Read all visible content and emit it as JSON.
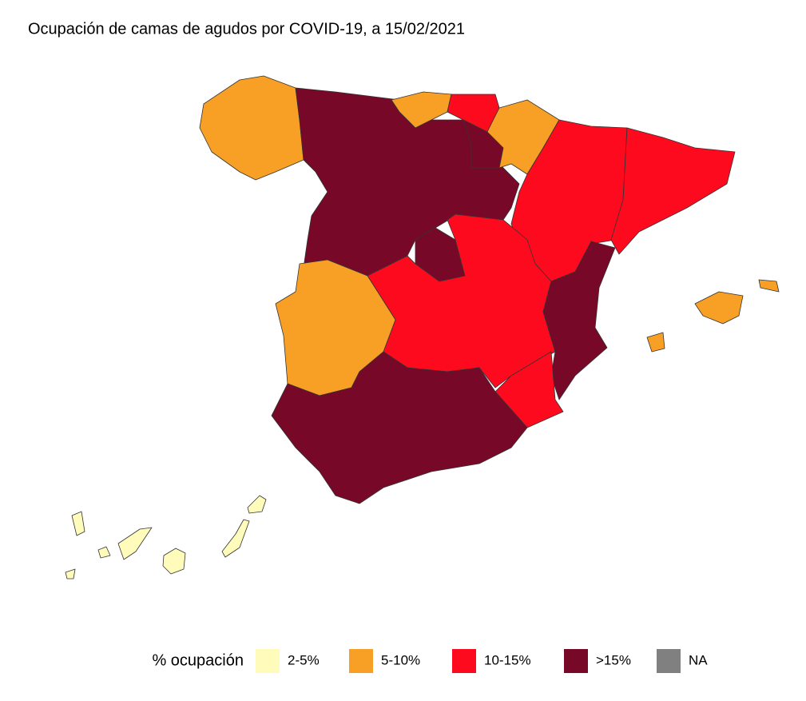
{
  "title": "Ocupación de camas de agudos por COVID-19, a 15/02/2021",
  "legend": {
    "title": "% ocupación",
    "items": [
      {
        "label": "2-5%",
        "color": "#fffcbb"
      },
      {
        "label": "5-10%",
        "color": "#f8a025"
      },
      {
        "label": "10-15%",
        "color": "#fe0a1e"
      },
      {
        "label": ">15%",
        "color": "#780828"
      },
      {
        "label": "NA",
        "color": "#808080"
      }
    ]
  }
}
